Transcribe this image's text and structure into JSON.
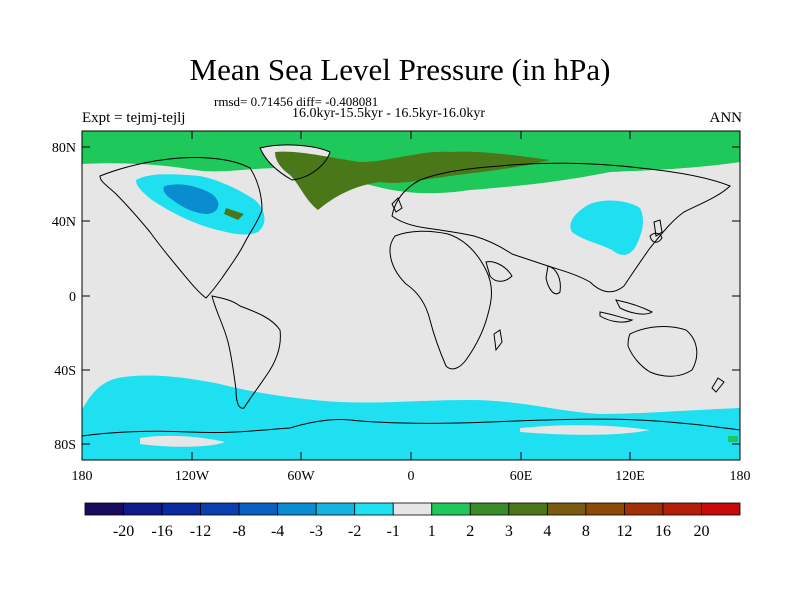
{
  "title": "Mean Sea Level Pressure (in hPa)",
  "stats": "rmsd= 0.71456 diff= -0.408081",
  "period": "16.0kyr-15.5kyr - 16.5kyr-16.0kyr",
  "experiment": "Expt = tejmj-tejlj",
  "season": "ANN",
  "map": {
    "lat_ticks": [
      "80N",
      "40N",
      "0",
      "40S",
      "80S"
    ],
    "lon_ticks": [
      "180",
      "120W",
      "60W",
      "0",
      "60E",
      "120E",
      "180"
    ]
  },
  "colorbar": {
    "labels": [
      "-20",
      "-16",
      "-12",
      "-8",
      "-4",
      "-3",
      "-2",
      "-1",
      "1",
      "2",
      "3",
      "4",
      "8",
      "12",
      "16",
      "20"
    ],
    "colors": [
      "#1a0a5e",
      "#101a8a",
      "#0a2aa0",
      "#0a3fb0",
      "#0a60c0",
      "#0a8cd0",
      "#14b4e0",
      "#1ee0f0",
      "#e6e6e6",
      "#1ec85a",
      "#3a8c28",
      "#4a7818",
      "#7a5a10",
      "#8c4a08",
      "#a03008",
      "#b41e08",
      "#c80a0a"
    ]
  },
  "palette": {
    "background": "#e6e6e6",
    "positive": "#1ec85a",
    "positive_strong": "#4a7818",
    "negative": "#1ee0f0",
    "negative_strong": "#0a8cd0"
  }
}
